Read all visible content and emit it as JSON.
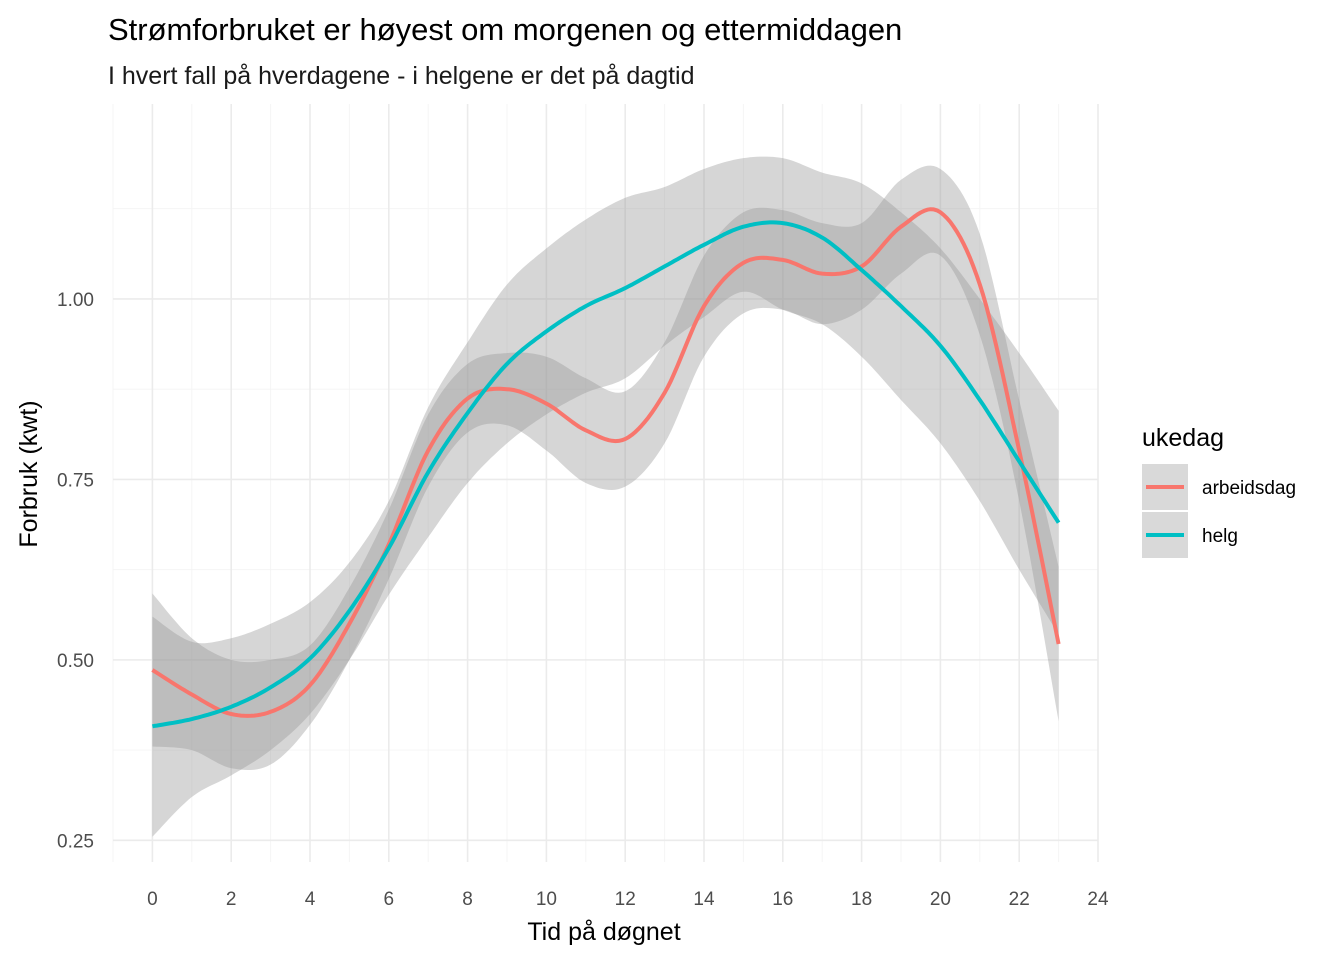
{
  "chart_data": {
    "type": "line",
    "title": "Strømforbruket er høyest om morgenen og ettermiddagen",
    "subtitle": "I hvert fall på hverdagene - i helgene er det på dagtid",
    "xlabel": "Tid på døgnet",
    "ylabel": "Forbruk (kwt)",
    "xlim": [
      -1.0,
      24.0
    ],
    "ylim": [
      0.22,
      1.27
    ],
    "x_ticks": [
      0,
      2,
      4,
      6,
      8,
      10,
      12,
      14,
      16,
      18,
      20,
      22,
      24
    ],
    "x_tick_labels": [
      "0",
      "2",
      "4",
      "6",
      "8",
      "10",
      "12",
      "14",
      "16",
      "18",
      "20",
      "22",
      "24"
    ],
    "y_ticks": [
      0.25,
      0.5,
      0.75,
      1.0
    ],
    "y_tick_labels": [
      "0.25",
      "0.50",
      "0.75",
      "1.00"
    ],
    "grid": true,
    "legend": {
      "title": "ukedag",
      "position": "right"
    },
    "series": [
      {
        "name": "arbeidsdag",
        "color": "#F8766D",
        "x": [
          0,
          1,
          2,
          3,
          4,
          5,
          6,
          7,
          8,
          9,
          10,
          11,
          12,
          13,
          14,
          15,
          16,
          17,
          18,
          19,
          20,
          21,
          22,
          23
        ],
        "y": [
          0.486,
          0.452,
          0.425,
          0.428,
          0.465,
          0.55,
          0.66,
          0.79,
          0.862,
          0.875,
          0.855,
          0.818,
          0.806,
          0.87,
          0.99,
          1.05,
          1.054,
          1.035,
          1.045,
          1.1,
          1.12,
          1.02,
          0.79,
          0.522
        ],
        "lower": [
          0.38,
          0.375,
          0.35,
          0.355,
          0.41,
          0.5,
          0.612,
          0.74,
          0.815,
          0.825,
          0.79,
          0.745,
          0.74,
          0.8,
          0.92,
          0.98,
          0.985,
          0.965,
          0.985,
          1.035,
          1.06,
          0.95,
          0.72,
          0.415
        ],
        "upper": [
          0.592,
          0.53,
          0.5,
          0.5,
          0.52,
          0.6,
          0.708,
          0.84,
          0.91,
          0.925,
          0.92,
          0.89,
          0.872,
          0.94,
          1.06,
          1.12,
          1.123,
          1.105,
          1.105,
          1.165,
          1.18,
          1.09,
          0.86,
          0.629
        ]
      },
      {
        "name": "helg",
        "color": "#00BFC4",
        "x": [
          0,
          1,
          2,
          3,
          4,
          5,
          6,
          7,
          8,
          9,
          10,
          11,
          12,
          13,
          14,
          15,
          16,
          17,
          18,
          19,
          20,
          21,
          22,
          23
        ],
        "y": [
          0.408,
          0.418,
          0.435,
          0.462,
          0.502,
          0.568,
          0.655,
          0.76,
          0.842,
          0.91,
          0.955,
          0.99,
          1.015,
          1.045,
          1.075,
          1.1,
          1.105,
          1.085,
          1.04,
          0.99,
          0.935,
          0.86,
          0.775,
          0.69
        ],
        "lower": [
          0.255,
          0.31,
          0.34,
          0.375,
          0.425,
          0.5,
          0.59,
          0.67,
          0.745,
          0.8,
          0.84,
          0.87,
          0.89,
          0.935,
          0.975,
          1.01,
          0.985,
          0.965,
          0.92,
          0.86,
          0.8,
          0.72,
          0.625,
          0.535
        ],
        "upper": [
          0.56,
          0.525,
          0.53,
          0.55,
          0.58,
          0.635,
          0.72,
          0.85,
          0.94,
          1.02,
          1.07,
          1.11,
          1.14,
          1.155,
          1.18,
          1.195,
          1.195,
          1.175,
          1.16,
          1.12,
          1.07,
          1.0,
          0.925,
          0.845
        ]
      }
    ]
  }
}
